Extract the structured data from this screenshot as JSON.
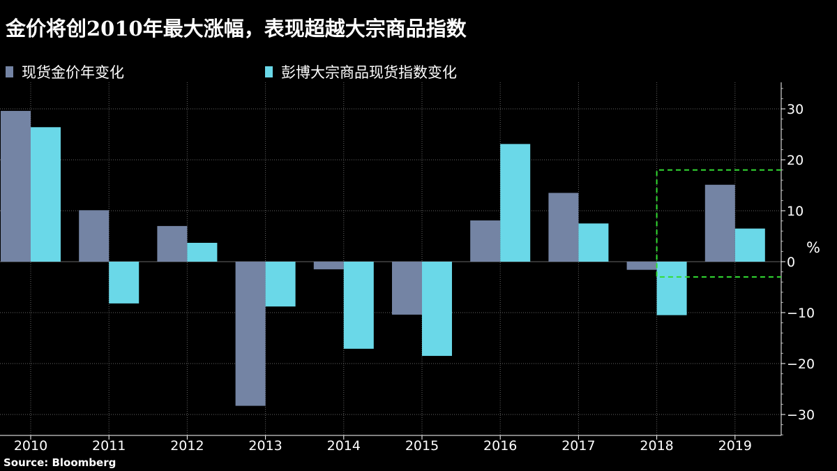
{
  "title": "金价将创2010年最大涨幅，表现超越大宗商品指数",
  "source": "Source:  Bloomberg",
  "colors": {
    "gold": "#7484a4",
    "commodity": "#6ad8e8",
    "highlight": "#33dd33"
  },
  "chart_data": {
    "type": "bar",
    "categories": [
      "2010",
      "2011",
      "2012",
      "2013",
      "2014",
      "2015",
      "2016",
      "2017",
      "2018",
      "2019"
    ],
    "series": [
      {
        "name": "现货金价年变化",
        "values": [
          29.6,
          10.1,
          7.0,
          -28.3,
          -1.5,
          -10.4,
          8.1,
          13.5,
          -1.6,
          15.1
        ]
      },
      {
        "name": "彭博大宗商品现货指数变化",
        "values": [
          26.4,
          -8.2,
          3.7,
          -8.8,
          -17.1,
          -18.5,
          23.1,
          7.5,
          -10.5,
          6.5
        ]
      }
    ],
    "ylabel": "%",
    "ylim": [
      -34,
      35
    ],
    "yticks": [
      30,
      20,
      10,
      0,
      -10,
      -20,
      -30
    ],
    "grid": true,
    "legend_position": "top-left",
    "annotation": {
      "type": "dashed-box",
      "x_from": "2018",
      "y_range": [
        -3,
        18
      ]
    }
  }
}
